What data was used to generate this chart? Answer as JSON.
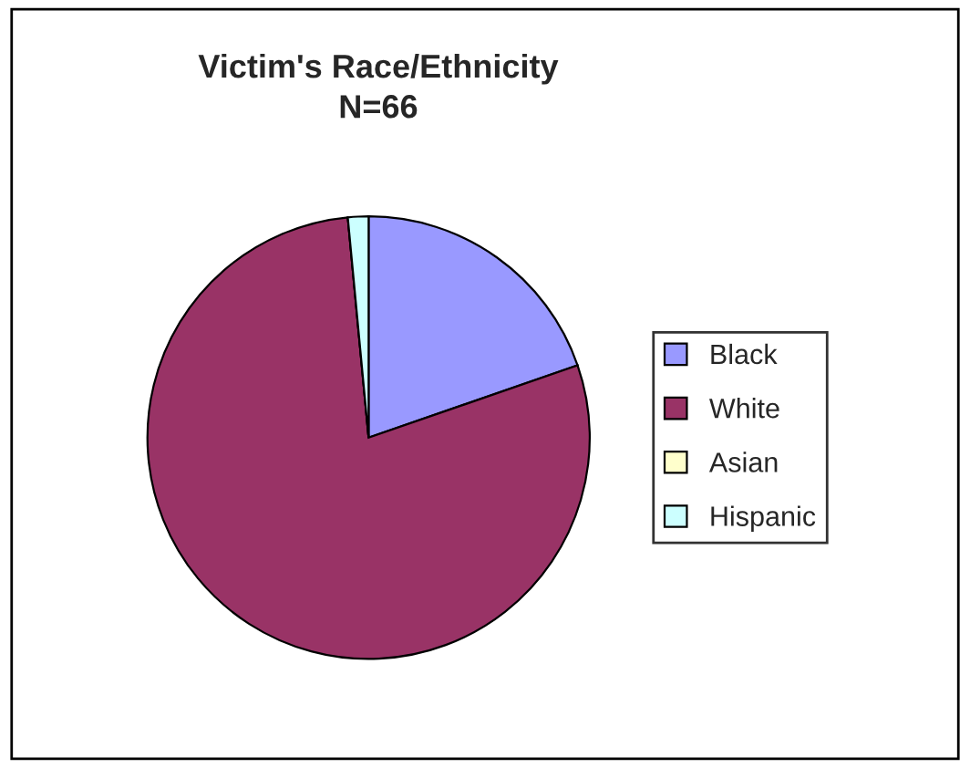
{
  "chart_data": {
    "type": "pie",
    "title": "Victim's Race/Ethnicity\nN=66",
    "categories": [
      "Black",
      "White",
      "Asian",
      "Hispanic"
    ],
    "values": [
      19.7,
      78.8,
      0,
      1.5
    ],
    "colors": [
      "#9999ff",
      "#993366",
      "#ffffcc",
      "#ccffff"
    ],
    "legend": "right"
  }
}
